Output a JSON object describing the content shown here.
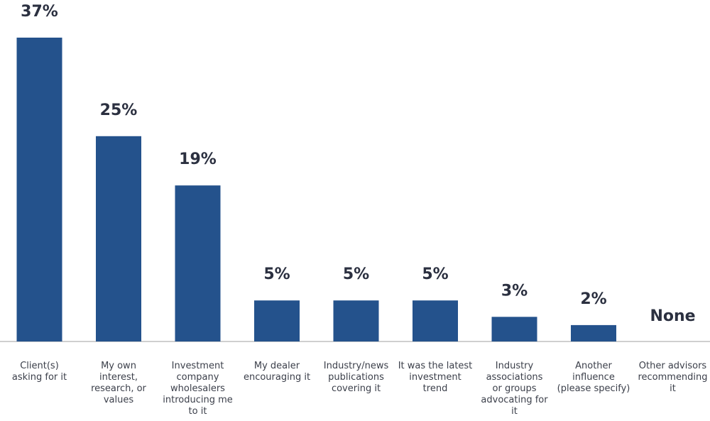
{
  "chart_data": {
    "type": "bar",
    "categories": [
      [
        "Client(s)",
        "asking for it"
      ],
      [
        "My own",
        "interest,",
        "research, or",
        "values"
      ],
      [
        "Investment",
        "company",
        "wholesalers",
        "introducing me",
        "to it"
      ],
      [
        "My dealer",
        "encouraging it"
      ],
      [
        "Industry/news",
        "publications",
        "covering it"
      ],
      [
        "It was the latest",
        "investment",
        "trend"
      ],
      [
        "Industry",
        "associations",
        "or groups",
        "advocating for",
        "it"
      ],
      [
        "Another",
        "influence",
        "(please specify)"
      ],
      [
        "Other advisors",
        "recommending",
        "it"
      ]
    ],
    "values": [
      37,
      25,
      19,
      5,
      5,
      5,
      3,
      2,
      0
    ],
    "value_labels": [
      "37%",
      "25%",
      "19%",
      "5%",
      "5%",
      "5%",
      "3%",
      "2%",
      "None"
    ],
    "ylim": [
      0,
      37
    ],
    "grid": false,
    "legend": "none",
    "title": "",
    "xlabel": "",
    "ylabel": "",
    "colors": {
      "bar": "#24528c",
      "axis": "#bfbfbf",
      "label": "#2b3040"
    }
  }
}
